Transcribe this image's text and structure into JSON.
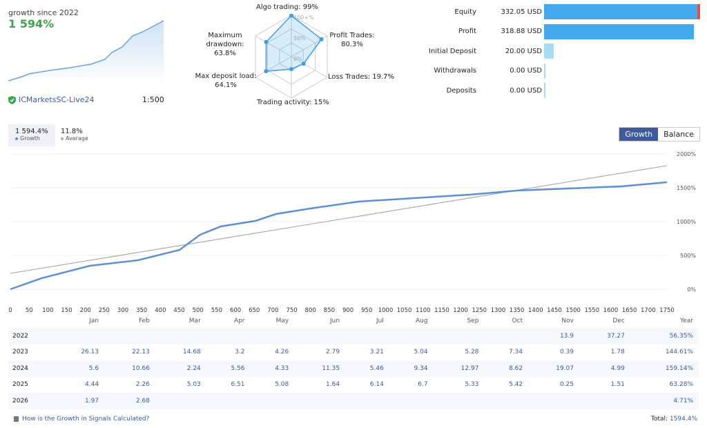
{
  "summary": {
    "since": "growth since 2022",
    "growth": "1 594%",
    "broker": "ICMarketsSC-Live24",
    "leverage": "1:500"
  },
  "radar": {
    "axes": [
      {
        "label": "Algo trading: 99%",
        "value": 99
      },
      {
        "label": "Profit Trades: 80.3%",
        "value": 80.3
      },
      {
        "label": "Loss Trades: 19.7%",
        "value": 19.7
      },
      {
        "label": "Trading activity: 15%",
        "value": 15
      },
      {
        "label": "Max deposit load: 64.1%",
        "value": 64.1
      },
      {
        "label": "Maximum drawdown: 63.8%",
        "value": 63.8
      }
    ],
    "ticks": [
      "100+%",
      "50%",
      "0%"
    ],
    "color": "#3aa0e0"
  },
  "finance": [
    {
      "label": "Equity",
      "value": "332.05 USD",
      "amount": 332.05
    },
    {
      "label": "Profit",
      "value": "318.88 USD",
      "amount": 318.88
    },
    {
      "label": "Initial Deposit",
      "value": "20.00 USD",
      "amount": 20
    },
    {
      "label": "Withdrawals",
      "value": "0.00 USD",
      "amount": 0
    },
    {
      "label": "Deposits",
      "value": "0.00 USD",
      "amount": 0
    }
  ],
  "stats": {
    "growth_value": "1 594.4%",
    "growth_label": "Growth",
    "avg_value": "11.8%",
    "avg_label": "Average"
  },
  "toggle": {
    "growth": "Growth",
    "balance": "Balance"
  },
  "chart_data": {
    "type": "line",
    "xlim": [
      0,
      1750
    ],
    "ylim": [
      0,
      2000
    ],
    "x_ticks": [
      "0",
      "50",
      "100",
      "150",
      "200",
      "250",
      "300",
      "350",
      "400",
      "450",
      "500",
      "550",
      "600",
      "650",
      "700",
      "750",
      "800",
      "850",
      "900",
      "950",
      "1000",
      "1050",
      "1100",
      "1150",
      "1200",
      "1250",
      "1300",
      "1350",
      "1400",
      "1450",
      "1500",
      "1550",
      "1600",
      "1650",
      "1700",
      "1750"
    ],
    "y_ticks": [
      "0%",
      "500%",
      "1000%",
      "1500%",
      "2000%"
    ],
    "series": [
      {
        "color": "#5b8fd6",
        "points": [
          [
            0,
            0
          ],
          [
            83,
            163
          ],
          [
            212,
            347
          ],
          [
            340,
            429
          ],
          [
            451,
            582
          ],
          [
            506,
            806
          ],
          [
            561,
            929
          ],
          [
            653,
            1010
          ],
          [
            708,
            1112
          ],
          [
            800,
            1194
          ],
          [
            929,
            1296
          ],
          [
            1076,
            1347
          ],
          [
            1224,
            1398
          ],
          [
            1352,
            1459
          ],
          [
            1628,
            1520
          ],
          [
            1750,
            1582
          ]
        ]
      },
      {
        "color": "#aaaaaa",
        "points": [
          [
            0,
            235
          ],
          [
            1750,
            1827
          ]
        ]
      }
    ]
  },
  "table": {
    "headers": [
      "",
      "Jan",
      "Feb",
      "Mar",
      "Apr",
      "May",
      "Jun",
      "Jul",
      "Aug",
      "Sep",
      "Oct",
      "Nov",
      "Dec",
      "Year"
    ],
    "rows": [
      [
        "2022",
        "",
        "",
        "",
        "",
        "",
        "",
        "",
        "",
        "",
        "",
        "13.9",
        "37.27",
        "56.35%"
      ],
      [
        "2023",
        "26.13",
        "22.13",
        "14.68",
        "3.2",
        "4.26",
        "2.79",
        "3.21",
        "5.04",
        "5.28",
        "7.34",
        "0.39",
        "1.78",
        "144.61%"
      ],
      [
        "2024",
        "5.6",
        "10.66",
        "2.24",
        "5.56",
        "4.33",
        "11.35",
        "5.46",
        "9.34",
        "12.97",
        "8.62",
        "19.07",
        "4.99",
        "159.14%"
      ],
      [
        "2025",
        "4.44",
        "2.26",
        "5.03",
        "6.51",
        "5.08",
        "1.64",
        "6.14",
        "6.7",
        "5.33",
        "5.42",
        "0.25",
        "1.51",
        "63.28%"
      ],
      [
        "2026",
        "1.97",
        "2.68",
        "",
        "",
        "",
        "",
        "",
        "",
        "",
        "",
        "",
        "",
        "4.71%"
      ]
    ]
  },
  "footer": {
    "link": "How is the Growth in Signals Calculated?",
    "total_label": "Total:",
    "total_value": "1594.4%"
  }
}
